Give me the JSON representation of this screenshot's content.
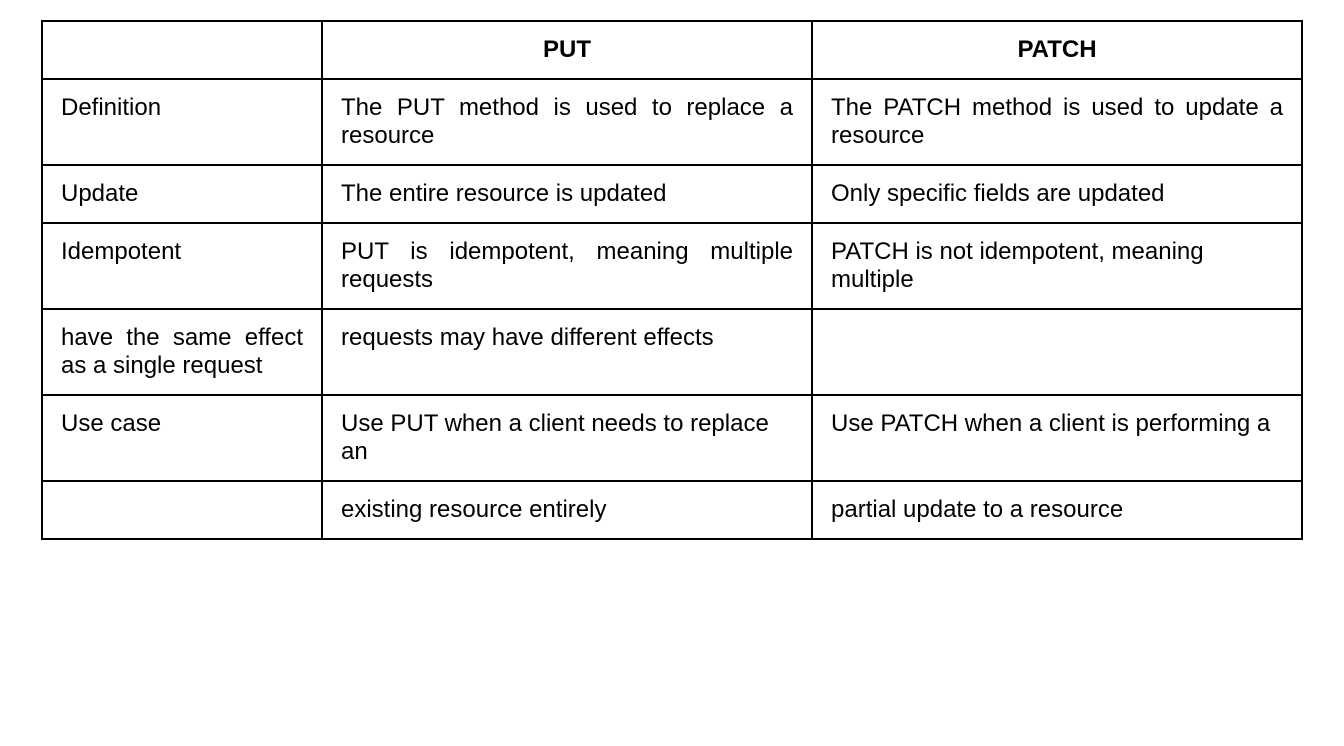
{
  "table": {
    "type": "table",
    "background_color": "#ffffff",
    "border_color": "#000000",
    "text_color": "#000000",
    "font_size": 24,
    "header_font_weight": "bold",
    "columns": {
      "label_width": 280,
      "put_width": 490,
      "patch_width": 490
    },
    "headers": {
      "blank": "",
      "put": "PUT",
      "patch": "PATCH"
    },
    "rows": [
      {
        "label": "Definition",
        "put": "The PUT method is used to replace a resource",
        "patch": "The PATCH method is used to update a resource"
      },
      {
        "label": "Update",
        "put": "The entire resource is updated",
        "patch": "Only specific fields are updated"
      },
      {
        "label": "Idempotent",
        "put": "PUT is idempotent, meaning multiple requests",
        "patch": "PATCH is not idempotent, meaning multiple"
      },
      {
        "label": "have the same effect as a single request",
        "put": "requests may have different effects",
        "patch": ""
      },
      {
        "label": "Use case",
        "put": "Use PUT when a client needs to replace an",
        "patch": "Use PATCH when a client is performing a"
      },
      {
        "label": "",
        "put": "existing resource entirely",
        "patch": "partial update to a resource"
      }
    ]
  }
}
